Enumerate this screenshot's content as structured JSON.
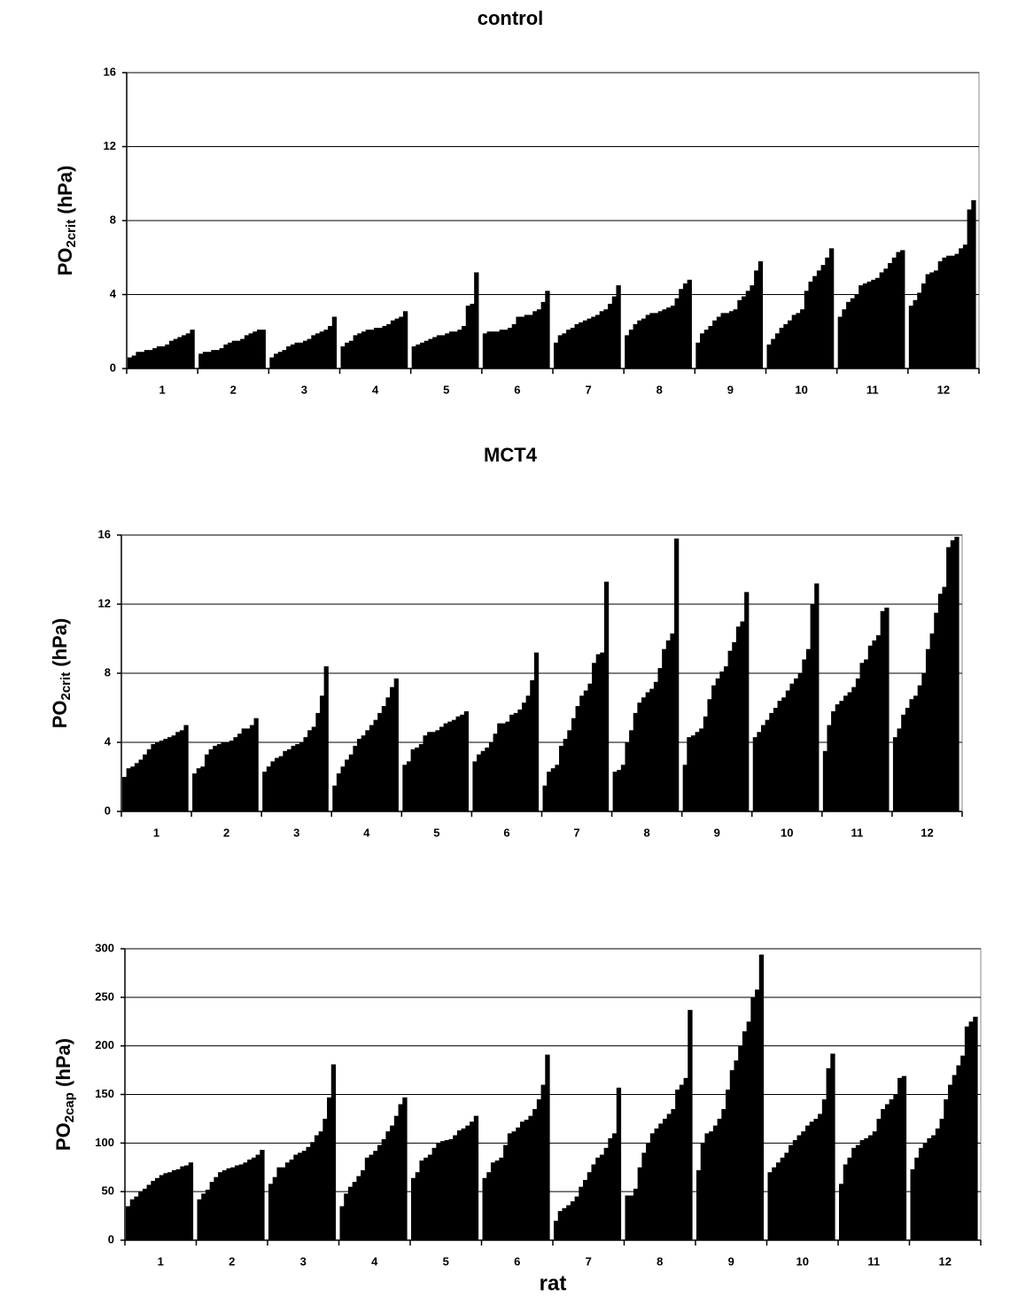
{
  "chart_data": [
    {
      "type": "bar",
      "title": "control",
      "ylabel": {
        "main": "PO",
        "sub": "2crit",
        "unit": " (hPa)"
      },
      "categories": [
        "1",
        "2",
        "3",
        "4",
        "5",
        "6",
        "7",
        "8",
        "9",
        "10",
        "11",
        "12"
      ],
      "values": [
        [
          0.6,
          0.7,
          0.9,
          0.9,
          1.0,
          1.0,
          1.1,
          1.2,
          1.2,
          1.3,
          1.5,
          1.6,
          1.7,
          1.8,
          1.9,
          2.1
        ],
        [
          0.8,
          0.9,
          0.9,
          1.0,
          1.0,
          1.1,
          1.3,
          1.4,
          1.5,
          1.5,
          1.6,
          1.8,
          1.9,
          2.0,
          2.1,
          2.1
        ],
        [
          0.6,
          0.8,
          0.9,
          1.0,
          1.2,
          1.3,
          1.4,
          1.4,
          1.5,
          1.6,
          1.8,
          1.9,
          2.0,
          2.1,
          2.3,
          2.8
        ],
        [
          1.2,
          1.4,
          1.5,
          1.8,
          1.9,
          2.0,
          2.1,
          2.1,
          2.2,
          2.2,
          2.3,
          2.4,
          2.6,
          2.7,
          2.8,
          3.1
        ],
        [
          1.2,
          1.3,
          1.4,
          1.5,
          1.6,
          1.7,
          1.8,
          1.8,
          1.9,
          2.0,
          2.0,
          2.1,
          2.3,
          3.4,
          3.5,
          5.2
        ],
        [
          1.9,
          2.0,
          2.0,
          2.0,
          2.1,
          2.1,
          2.2,
          2.4,
          2.8,
          2.8,
          2.9,
          2.9,
          3.1,
          3.2,
          3.6,
          4.2
        ],
        [
          1.4,
          1.8,
          1.9,
          2.1,
          2.2,
          2.4,
          2.5,
          2.6,
          2.7,
          2.8,
          2.9,
          3.1,
          3.2,
          3.5,
          3.9,
          4.5
        ],
        [
          1.8,
          2.1,
          2.4,
          2.6,
          2.7,
          2.9,
          3.0,
          3.0,
          3.1,
          3.2,
          3.3,
          3.4,
          3.8,
          4.3,
          4.6,
          4.8
        ],
        [
          1.4,
          1.9,
          2.1,
          2.3,
          2.6,
          2.8,
          3.0,
          3.0,
          3.1,
          3.2,
          3.7,
          3.9,
          4.2,
          4.5,
          5.3,
          5.8
        ],
        [
          1.3,
          1.6,
          1.9,
          2.2,
          2.4,
          2.6,
          2.9,
          3.0,
          3.2,
          4.2,
          4.7,
          5.0,
          5.3,
          5.6,
          6.0,
          6.5
        ],
        [
          2.8,
          3.2,
          3.6,
          3.8,
          4.0,
          4.5,
          4.6,
          4.7,
          4.8,
          4.9,
          5.2,
          5.4,
          5.7,
          6.0,
          6.3,
          6.4
        ],
        [
          3.4,
          3.7,
          4.1,
          4.6,
          5.1,
          5.2,
          5.3,
          5.8,
          6.0,
          6.1,
          6.1,
          6.2,
          6.5,
          6.7,
          8.6,
          9.1
        ]
      ],
      "color": "#000000",
      "ylim": [
        0,
        16
      ],
      "yticks": [
        0,
        4,
        8,
        12,
        16
      ],
      "grid": true
    },
    {
      "type": "bar",
      "title": "MCT4",
      "ylabel": {
        "main": "PO",
        "sub": "2crit",
        "unit": " (hPa)"
      },
      "categories": [
        "1",
        "2",
        "3",
        "4",
        "5",
        "6",
        "7",
        "8",
        "9",
        "10",
        "11",
        "12"
      ],
      "values": [
        [
          2.0,
          2.5,
          2.6,
          2.8,
          3.0,
          3.3,
          3.6,
          3.9,
          4.0,
          4.1,
          4.2,
          4.3,
          4.4,
          4.6,
          4.7,
          5.0
        ],
        [
          2.2,
          2.5,
          2.6,
          3.3,
          3.6,
          3.8,
          3.9,
          4.0,
          4.0,
          4.1,
          4.3,
          4.5,
          4.8,
          4.8,
          5.0,
          5.4
        ],
        [
          2.3,
          2.6,
          2.9,
          3.1,
          3.2,
          3.5,
          3.6,
          3.8,
          3.9,
          4.0,
          4.3,
          4.7,
          4.9,
          5.7,
          6.7,
          8.4
        ],
        [
          1.5,
          2.2,
          2.6,
          3.0,
          3.3,
          3.8,
          4.2,
          4.4,
          4.7,
          5.0,
          5.3,
          5.7,
          6.1,
          6.6,
          7.2,
          7.7
        ],
        [
          2.7,
          2.9,
          3.6,
          3.7,
          3.9,
          4.4,
          4.6,
          4.6,
          4.7,
          4.9,
          5.1,
          5.2,
          5.3,
          5.5,
          5.6,
          5.8
        ],
        [
          2.9,
          3.3,
          3.5,
          3.7,
          4.0,
          4.5,
          5.1,
          5.1,
          5.2,
          5.6,
          5.7,
          5.9,
          6.3,
          6.7,
          7.6,
          9.2
        ],
        [
          1.5,
          2.3,
          2.5,
          2.7,
          3.8,
          4.2,
          4.7,
          5.4,
          6.1,
          6.7,
          7.0,
          7.4,
          8.6,
          9.1,
          9.2,
          13.3
        ],
        [
          2.3,
          2.4,
          2.7,
          4.0,
          4.7,
          5.7,
          6.3,
          6.6,
          6.9,
          7.1,
          7.5,
          8.3,
          9.4,
          9.9,
          10.3,
          15.8
        ],
        [
          2.7,
          4.3,
          4.4,
          4.6,
          4.8,
          5.5,
          6.5,
          7.3,
          7.7,
          8.1,
          8.4,
          9.3,
          9.8,
          10.7,
          11.0,
          12.7
        ],
        [
          4.3,
          4.6,
          5.0,
          5.3,
          5.7,
          6.0,
          6.4,
          6.6,
          7.0,
          7.4,
          7.7,
          8.0,
          8.8,
          9.4,
          12.0,
          13.2
        ],
        [
          3.5,
          5.0,
          5.8,
          6.2,
          6.4,
          6.7,
          6.9,
          7.2,
          7.7,
          8.6,
          8.8,
          9.6,
          9.9,
          10.2,
          11.6,
          11.8
        ],
        [
          4.3,
          4.8,
          5.6,
          6.0,
          6.5,
          6.7,
          7.3,
          8.0,
          9.4,
          10.3,
          11.5,
          12.6,
          13.0,
          15.3,
          15.7,
          15.9
        ]
      ],
      "color": "#000000",
      "ylim": [
        0,
        16
      ],
      "yticks": [
        0,
        4,
        8,
        12,
        16
      ],
      "grid": true
    },
    {
      "type": "bar",
      "xlabel": "rat",
      "ylabel": {
        "main": "PO",
        "sub": "2cap",
        "unit": " (hPa)"
      },
      "categories": [
        "1",
        "2",
        "3",
        "4",
        "5",
        "6",
        "7",
        "8",
        "9",
        "10",
        "11",
        "12"
      ],
      "values": [
        [
          35,
          42,
          45,
          50,
          53,
          57,
          61,
          64,
          67,
          69,
          70,
          72,
          73,
          76,
          77,
          80
        ],
        [
          42,
          48,
          52,
          60,
          65,
          70,
          72,
          74,
          75,
          77,
          78,
          80,
          83,
          85,
          88,
          93
        ],
        [
          58,
          65,
          75,
          75,
          80,
          83,
          88,
          90,
          92,
          96,
          101,
          108,
          112,
          125,
          147,
          181
        ],
        [
          35,
          48,
          55,
          60,
          66,
          72,
          85,
          88,
          92,
          98,
          104,
          112,
          118,
          128,
          140,
          147
        ],
        [
          64,
          70,
          82,
          85,
          88,
          95,
          100,
          102,
          103,
          104,
          108,
          113,
          115,
          118,
          122,
          128
        ],
        [
          64,
          70,
          80,
          82,
          85,
          98,
          110,
          112,
          116,
          122,
          124,
          128,
          135,
          145,
          160,
          191
        ],
        [
          20,
          30,
          33,
          36,
          40,
          45,
          55,
          62,
          70,
          78,
          85,
          88,
          95,
          105,
          110,
          157
        ],
        [
          46,
          46,
          53,
          75,
          90,
          100,
          110,
          115,
          120,
          125,
          130,
          135,
          155,
          160,
          167,
          237
        ],
        [
          72,
          100,
          110,
          112,
          118,
          125,
          135,
          155,
          175,
          185,
          200,
          215,
          225,
          250,
          258,
          294
        ],
        [
          70,
          75,
          80,
          85,
          90,
          98,
          103,
          108,
          112,
          118,
          122,
          125,
          130,
          145,
          177,
          192
        ],
        [
          58,
          78,
          85,
          95,
          98,
          103,
          105,
          108,
          112,
          125,
          135,
          140,
          145,
          150,
          167,
          169
        ],
        [
          73,
          85,
          95,
          100,
          105,
          108,
          115,
          125,
          145,
          160,
          170,
          180,
          190,
          220,
          225,
          230
        ]
      ],
      "color": "#000000",
      "ylim": [
        0,
        300
      ],
      "yticks": [
        0,
        50,
        100,
        150,
        200,
        250,
        300
      ],
      "grid": true
    }
  ]
}
